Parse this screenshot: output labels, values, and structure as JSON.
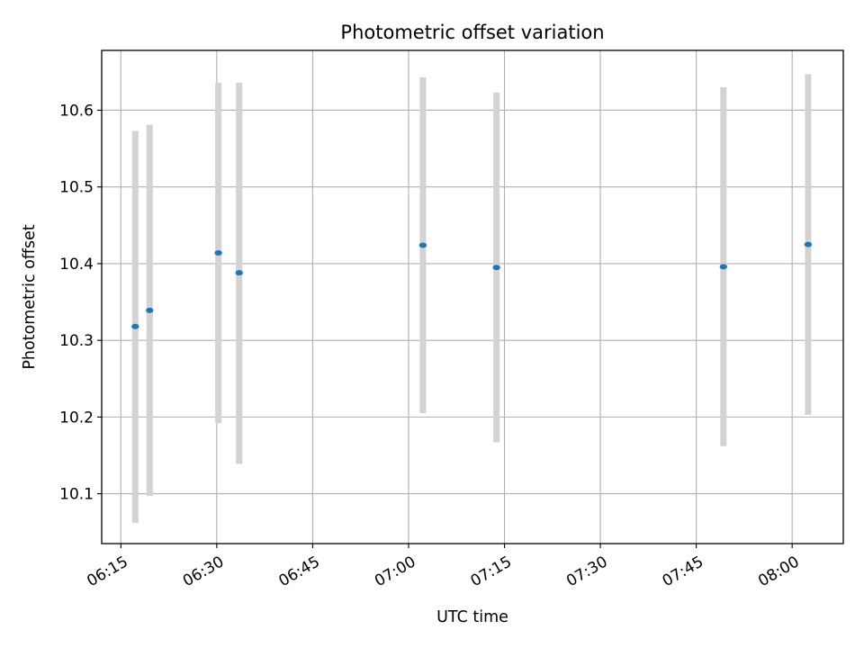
{
  "chart_data": {
    "type": "scatter",
    "title": "Photometric offset variation",
    "xlabel": "UTC time",
    "ylabel": "Photometric offset",
    "x_axis": {
      "kind": "time",
      "range": [
        "06:12",
        "08:08"
      ],
      "ticks": [
        "06:15",
        "06:30",
        "06:45",
        "07:00",
        "07:15",
        "07:30",
        "07:45",
        "08:00"
      ]
    },
    "y_axis": {
      "range": [
        10.035,
        10.678
      ],
      "ticks": [
        10.1,
        10.2,
        10.3,
        10.4,
        10.5,
        10.6
      ],
      "tick_labels": [
        "10.1",
        "10.2",
        "10.3",
        "10.4",
        "10.5",
        "10.6"
      ]
    },
    "grid": true,
    "colors": {
      "point": "#1f77b4",
      "errorbar": "#d3d3d3",
      "grid": "#b0b0b0"
    },
    "series": [
      {
        "points": [
          {
            "x": "06:17:15",
            "y": 10.318,
            "ylow": 10.062,
            "yhigh": 10.573
          },
          {
            "x": "06:19:30",
            "y": 10.339,
            "ylow": 10.097,
            "yhigh": 10.581
          },
          {
            "x": "06:30:15",
            "y": 10.414,
            "ylow": 10.192,
            "yhigh": 10.636
          },
          {
            "x": "06:33:30",
            "y": 10.388,
            "ylow": 10.139,
            "yhigh": 10.636
          },
          {
            "x": "07:02:15",
            "y": 10.424,
            "ylow": 10.205,
            "yhigh": 10.643
          },
          {
            "x": "07:13:45",
            "y": 10.395,
            "ylow": 10.167,
            "yhigh": 10.623
          },
          {
            "x": "07:49:15",
            "y": 10.396,
            "ylow": 10.162,
            "yhigh": 10.63
          },
          {
            "x": "08:02:30",
            "y": 10.425,
            "ylow": 10.203,
            "yhigh": 10.647
          }
        ]
      }
    ]
  }
}
